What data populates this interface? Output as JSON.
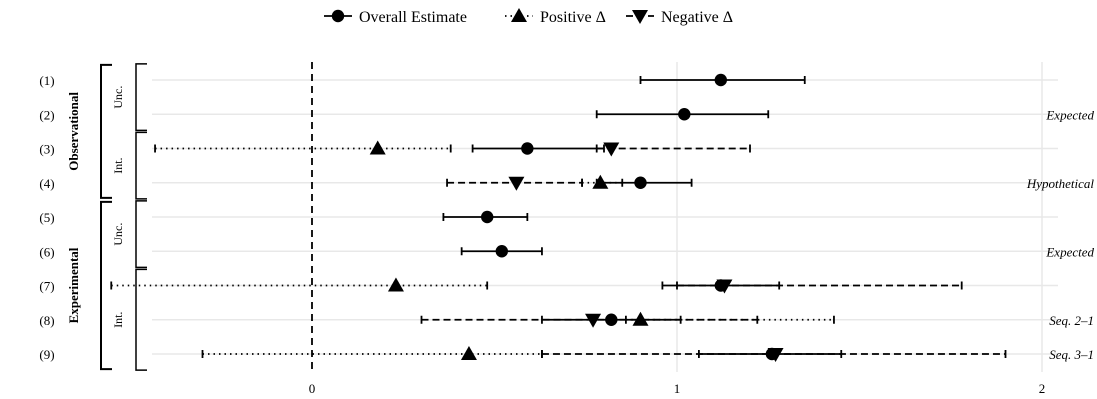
{
  "chart_data": {
    "type": "scatter",
    "title": "",
    "xlabel": "",
    "ylabel": "",
    "xlim": [
      -0.85,
      2.05
    ],
    "x_ticks": [
      0,
      1,
      2
    ],
    "x_tick_labels": [
      "0",
      "1",
      "2"
    ],
    "reference_line_x": 0,
    "grid": "on",
    "legend": {
      "position": "top",
      "entries": [
        {
          "label": "Overall Estimate",
          "marker": "circle",
          "line": "solid"
        },
        {
          "label": "Positive Δ",
          "marker": "triangle-up",
          "line": "dotted"
        },
        {
          "label": "Negative Δ",
          "marker": "triangle-down",
          "line": "dashed"
        }
      ]
    },
    "groups": [
      {
        "label": "Observational",
        "subgroups": [
          {
            "label": "Unc.",
            "rows": [
              1,
              2
            ]
          },
          {
            "label": "Int.",
            "rows": [
              3,
              4
            ]
          }
        ]
      },
      {
        "label": "Experimental",
        "subgroups": [
          {
            "label": "Unc.",
            "rows": [
              5,
              6
            ]
          },
          {
            "label": "Int.",
            "rows": [
              7,
              8,
              9
            ]
          }
        ]
      }
    ],
    "rows": [
      {
        "label": "(1)",
        "annotation": "",
        "overall": {
          "est": 1.12,
          "lo": 0.9,
          "hi": 1.35
        }
      },
      {
        "label": "(2)",
        "annotation": "Expected",
        "overall": {
          "est": 1.02,
          "lo": 0.78,
          "hi": 1.25
        }
      },
      {
        "label": "(3)",
        "annotation": "",
        "overall": {
          "est": 0.59,
          "lo": 0.44,
          "hi": 0.8
        },
        "positive": {
          "est": 0.18,
          "lo": -0.43,
          "hi": 0.38
        },
        "negative": {
          "est": 0.82,
          "lo": 0.78,
          "hi": 1.2
        }
      },
      {
        "label": "(4)",
        "annotation": "Hypothetical",
        "overall": {
          "est": 0.9,
          "lo": 0.78,
          "hi": 1.04
        },
        "positive": {
          "est": 0.79,
          "lo": 0.74,
          "hi": 0.85
        },
        "negative": {
          "est": 0.56,
          "lo": 0.37,
          "hi": 0.74
        }
      },
      {
        "label": "(5)",
        "annotation": "",
        "overall": {
          "est": 0.48,
          "lo": 0.36,
          "hi": 0.59
        }
      },
      {
        "label": "(6)",
        "annotation": "Expected",
        "overall": {
          "est": 0.52,
          "lo": 0.41,
          "hi": 0.63
        }
      },
      {
        "label": "(7)",
        "annotation": "",
        "overall": {
          "est": 1.12,
          "lo": 0.96,
          "hi": 1.28
        },
        "positive": {
          "est": 0.23,
          "lo": -0.55,
          "hi": 0.48
        },
        "negative": {
          "est": 1.13,
          "lo": 1.0,
          "hi": 1.78
        }
      },
      {
        "label": "(8)",
        "annotation": "Seq. 2–1",
        "overall": {
          "est": 0.82,
          "lo": 0.63,
          "hi": 1.01
        },
        "positive": {
          "est": 0.9,
          "lo": 0.86,
          "hi": 1.43
        },
        "negative": {
          "est": 0.77,
          "lo": 0.3,
          "hi": 1.22
        }
      },
      {
        "label": "(9)",
        "annotation": "Seq. 3–1",
        "overall": {
          "est": 1.26,
          "lo": 1.06,
          "hi": 1.45
        },
        "positive": {
          "est": 0.43,
          "lo": -0.3,
          "hi": 0.63
        },
        "negative": {
          "est": 1.27,
          "lo": 0.63,
          "hi": 1.9
        }
      }
    ]
  }
}
